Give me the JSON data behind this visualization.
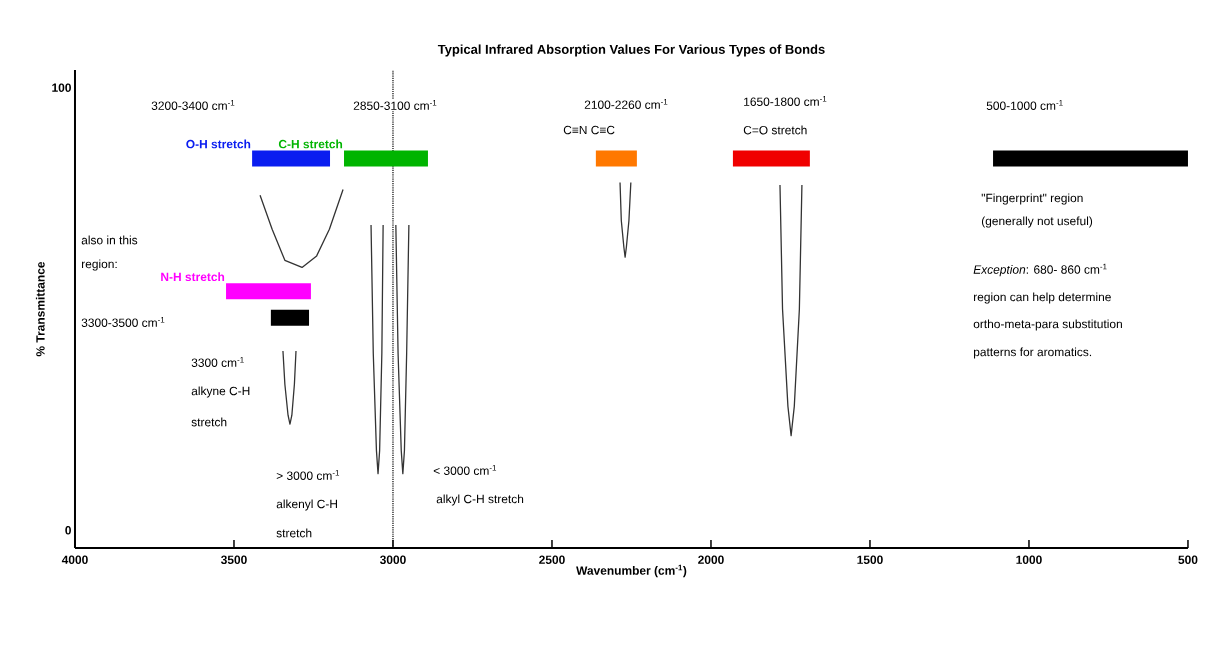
{
  "chart_data": {
    "type": "line",
    "title": "Typical Infrared Absorption Values For Various Types of Bonds",
    "xlabel": "Wavenumber (cm$^{-1}$)",
    "ylabel": "% Transmittance",
    "xlim": [
      4000,
      500
    ],
    "ylim": [
      -4,
      104
    ],
    "xticks": [
      4000,
      3500,
      3000,
      2500,
      2000,
      1500,
      1000,
      500
    ],
    "yticks": [
      0,
      100
    ],
    "series": [
      {
        "name": "O-H stretch",
        "color": "#0a1df0",
        "x": [
          3443,
          3198
        ],
        "values": [
          84,
          84
        ]
      },
      {
        "name": "C-H stretch",
        "color": "#00b400",
        "x": [
          3154,
          2890
        ],
        "values": [
          84,
          84
        ]
      },
      {
        "color": "#ff7800",
        "x": [
          2362,
          2233
        ],
        "values": [
          84,
          84
        ]
      },
      {
        "color": "#f00000",
        "x": [
          1931,
          1689
        ],
        "values": [
          84,
          84
        ]
      },
      {
        "color": "#000000",
        "x": [
          1113,
          500
        ],
        "values": [
          84,
          84
        ]
      },
      {
        "name": "N-H stretch",
        "color": "#ff00ff",
        "x": [
          3525,
          3258
        ],
        "values": [
          54,
          54
        ]
      },
      {
        "color": "#000000",
        "x": [
          3384,
          3264
        ],
        "values": [
          48,
          48
        ]
      },
      {
        "color": "#333333",
        "x": [
          3418,
          3380,
          3340,
          3286,
          3240,
          3200,
          3157
        ],
        "values": [
          75.7,
          68,
          61,
          59.4,
          62,
          68,
          77
        ]
      },
      {
        "color": "#333333",
        "x": [
          3346,
          3340,
          3330,
          3324,
          3318,
          3310,
          3305
        ],
        "values": [
          40.5,
          33,
          26,
          24,
          26,
          33,
          40.5
        ]
      },
      {
        "color": "#333333",
        "x": [
          3069,
          3062,
          3052,
          3047,
          3042,
          3035,
          3031
        ],
        "values": [
          69,
          40,
          18,
          12.8,
          18,
          40,
          69
        ]
      },
      {
        "color": "#333333",
        "x": [
          2991,
          2984,
          2974,
          2969,
          2964,
          2957,
          2950
        ],
        "values": [
          69,
          40,
          18,
          12.8,
          18,
          40,
          69
        ]
      },
      {
        "color": "#333333",
        "x": [
          2286,
          2282,
          2274,
          2270,
          2266,
          2258,
          2252
        ],
        "values": [
          78.6,
          70,
          64,
          61.7,
          64,
          70,
          78.6
        ]
      },
      {
        "color": "#333333",
        "x": [
          1783,
          1775,
          1758,
          1748,
          1738,
          1722,
          1714
        ],
        "values": [
          78,
          50,
          28,
          21.4,
          28,
          50,
          78
        ]
      }
    ],
    "ref_lines": [
      {
        "axis": "x",
        "value": 3000,
        "line_style": "dotted",
        "color": "#000000"
      }
    ],
    "annotations": [
      "3200-3400 cm$^{-1}$",
      "2850-3100 cm$^{-1}$",
      "2100-2260 cm$^{-1}$",
      "C≡N C≡C",
      "1650-1800 cm$^{-1}$",
      "C=O stretch",
      "500-1000 cm$^{-1}$",
      "\"Fingerprint\" region",
      "(generally not useful)",
      "*Exception*: 680- 860 cm$^{-1}$",
      "region can help determine",
      "ortho-meta-para substitution",
      "patterns for aromatics.",
      "also in this",
      "region:",
      "3300-3500 cm$^{-1}$",
      "3300 cm$^{-1}$",
      "alkyne C-H",
      "stretch",
      "> 3000 cm$^{-1}$",
      "alkenyl C-H",
      "stretch",
      "< 3000 cm$^{-1}$",
      "alkyl C-H stretch"
    ]
  }
}
